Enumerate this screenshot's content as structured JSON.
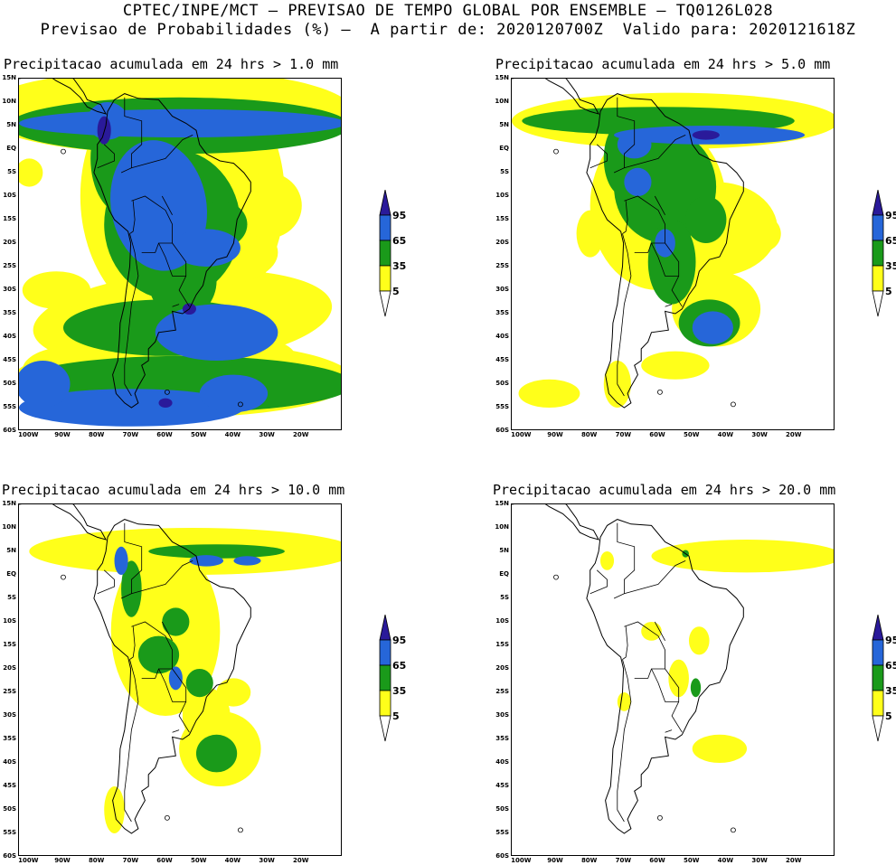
{
  "header": {
    "line1": "CPTEC/INPE/MCT – PREVISAO DE TEMPO GLOBAL POR ENSEMBLE – TQ0126L028",
    "line2": "Previsao de Probabilidades (%) –  A partir de: 2020120700Z  Valido para: 2020121618Z"
  },
  "colors": {
    "p5": "#ffff1a",
    "p35": "#1a9a1a",
    "p65": "#2666d9",
    "p95": "#2a1a9a",
    "land_outline": "#000000"
  },
  "legend": {
    "labels": [
      "95",
      "65",
      "35",
      "5"
    ]
  },
  "axes": {
    "lat_labels": [
      "15N",
      "10N",
      "5N",
      "EQ",
      "5S",
      "10S",
      "15S",
      "20S",
      "25S",
      "30S",
      "35S",
      "40S",
      "45S",
      "50S",
      "55S",
      "60S"
    ],
    "lon_labels": [
      "100W",
      "90W",
      "80W",
      "70W",
      "60W",
      "50W",
      "40W",
      "30W",
      "20W"
    ]
  },
  "panels": [
    {
      "id": "p1",
      "title": "Precipitacao acumulada em 24 hrs > 1.0 mm"
    },
    {
      "id": "p2",
      "title": "Precipitacao acumulada em 24 hrs > 5.0 mm"
    },
    {
      "id": "p3",
      "title": "Precipitacao acumulada em 24 hrs > 10.0 mm"
    },
    {
      "id": "p4",
      "title": "Precipitacao acumulada em 24 hrs > 20.0 mm"
    }
  ]
}
